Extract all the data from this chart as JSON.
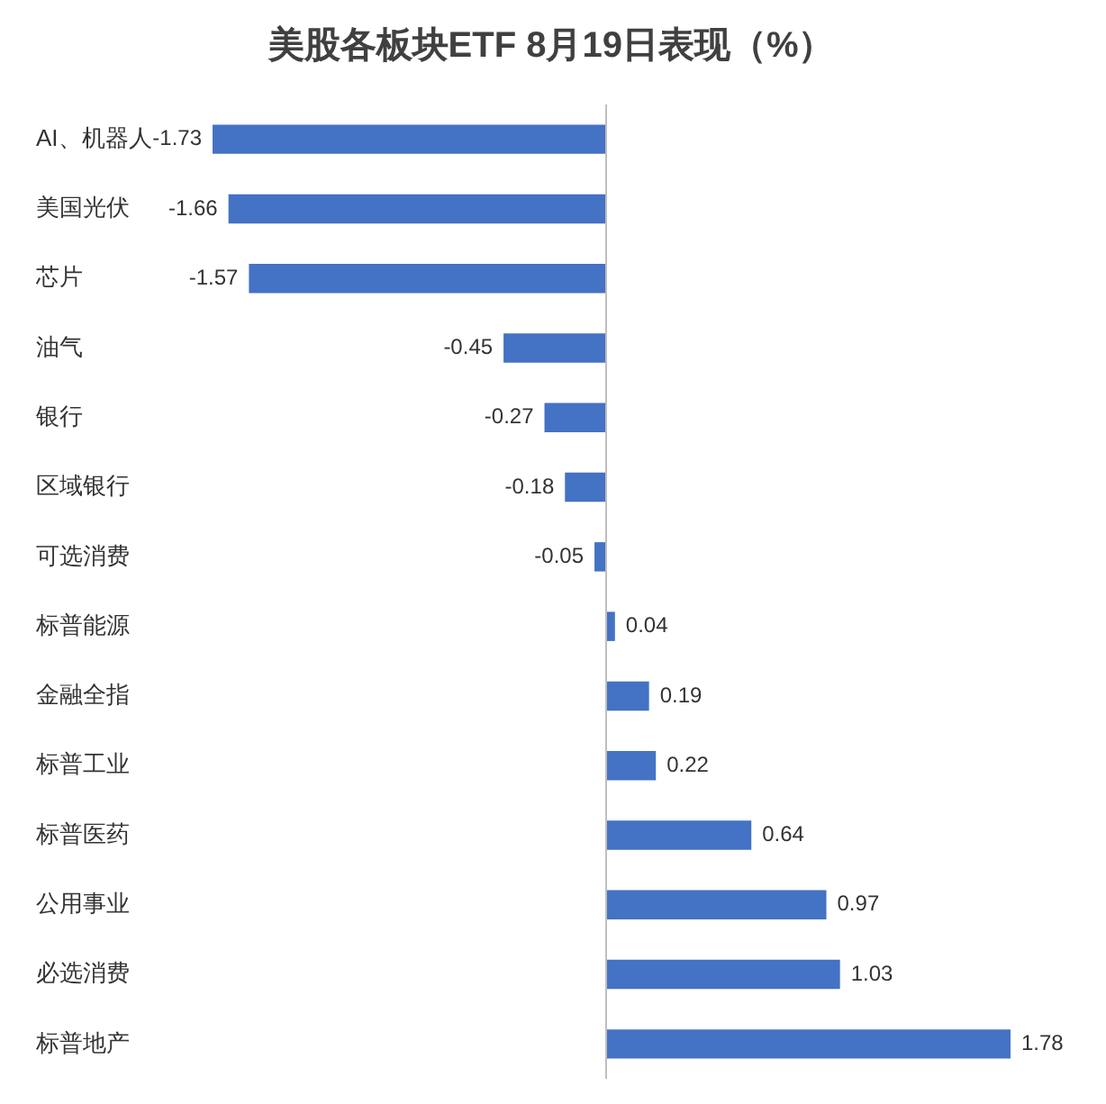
{
  "chart_data": {
    "type": "bar",
    "orientation": "horizontal",
    "title": "美股各板块ETF 8月19日表现（%）",
    "categories": [
      "AI、机器人",
      "美国光伏",
      "芯片",
      "油气",
      "银行",
      "区域银行",
      "可选消费",
      "标普能源",
      "金融全指",
      "标普工业",
      "标普医药",
      "公用事业",
      "必选消费",
      "标普地产"
    ],
    "values": [
      -1.73,
      -1.66,
      -1.57,
      -0.45,
      -0.27,
      -0.18,
      -0.05,
      0.04,
      0.19,
      0.22,
      0.64,
      0.97,
      1.03,
      1.78
    ],
    "color": "#4472c4",
    "data_labels": true,
    "grid": false,
    "legend": false
  }
}
